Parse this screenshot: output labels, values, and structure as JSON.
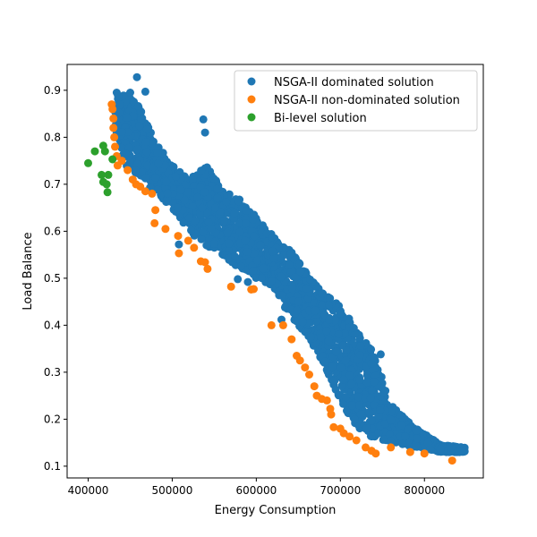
{
  "chart_data": {
    "type": "scatter",
    "title": "",
    "xlabel": "Energy Consumption",
    "ylabel": "Load Balance",
    "xlim": [
      375000,
      870000
    ],
    "ylim": [
      0.075,
      0.955
    ],
    "xticks": [
      400000,
      500000,
      600000,
      700000,
      800000
    ],
    "yticks": [
      0.1,
      0.2,
      0.3,
      0.4,
      0.5,
      0.6,
      0.7,
      0.8,
      0.9
    ],
    "grid": false,
    "legend": "top-right",
    "series": [
      {
        "name": "NSGA-II dominated solution",
        "color": "#1f77b4",
        "band": [
          [
            432000,
            0.82,
            0.895
          ],
          [
            445000,
            0.74,
            0.89
          ],
          [
            460000,
            0.72,
            0.87
          ],
          [
            480000,
            0.68,
            0.79
          ],
          [
            500000,
            0.65,
            0.74
          ],
          [
            520000,
            0.6,
            0.71
          ],
          [
            540000,
            0.57,
            0.74
          ],
          [
            560000,
            0.55,
            0.69
          ],
          [
            580000,
            0.52,
            0.67
          ],
          [
            600000,
            0.5,
            0.63
          ],
          [
            620000,
            0.48,
            0.59
          ],
          [
            640000,
            0.42,
            0.56
          ],
          [
            660000,
            0.38,
            0.51
          ],
          [
            680000,
            0.32,
            0.47
          ],
          [
            700000,
            0.24,
            0.44
          ],
          [
            720000,
            0.18,
            0.39
          ],
          [
            740000,
            0.16,
            0.34
          ],
          [
            760000,
            0.15,
            0.23
          ],
          [
            790000,
            0.14,
            0.18
          ],
          [
            820000,
            0.13,
            0.145
          ],
          [
            848000,
            0.13,
            0.14
          ]
        ],
        "points": [
          [
            458000,
            0.928
          ],
          [
            468000,
            0.897
          ],
          [
            537000,
            0.838
          ],
          [
            539000,
            0.81
          ],
          [
            450000,
            0.895
          ],
          [
            434000,
            0.895
          ],
          [
            578000,
            0.498
          ],
          [
            508000,
            0.572
          ],
          [
            630000,
            0.412
          ],
          [
            748000,
            0.338
          ],
          [
            660000,
            0.478
          ],
          [
            590000,
            0.492
          ],
          [
            716000,
            0.394
          ],
          [
            845000,
            0.133
          ],
          [
            832000,
            0.14
          ]
        ]
      },
      {
        "name": "NSGA-II non-dominated solution",
        "color": "#ff7f0e",
        "points": [
          [
            428000,
            0.87
          ],
          [
            429000,
            0.86
          ],
          [
            430000,
            0.84
          ],
          [
            430000,
            0.82
          ],
          [
            431000,
            0.8
          ],
          [
            432000,
            0.78
          ],
          [
            434000,
            0.76
          ],
          [
            435000,
            0.74
          ],
          [
            440000,
            0.75
          ],
          [
            447000,
            0.73
          ],
          [
            453000,
            0.71
          ],
          [
            457000,
            0.7
          ],
          [
            462000,
            0.695
          ],
          [
            468000,
            0.685
          ],
          [
            476000,
            0.68
          ],
          [
            480000,
            0.645
          ],
          [
            479000,
            0.617
          ],
          [
            492000,
            0.605
          ],
          [
            507000,
            0.59
          ],
          [
            519000,
            0.58
          ],
          [
            508000,
            0.553
          ],
          [
            526000,
            0.565
          ],
          [
            534000,
            0.536
          ],
          [
            539000,
            0.534
          ],
          [
            542000,
            0.52
          ],
          [
            570000,
            0.482
          ],
          [
            594000,
            0.476
          ],
          [
            597000,
            0.477
          ],
          [
            618000,
            0.4
          ],
          [
            632000,
            0.4
          ],
          [
            642000,
            0.37
          ],
          [
            648000,
            0.335
          ],
          [
            652000,
            0.325
          ],
          [
            658000,
            0.31
          ],
          [
            663000,
            0.295
          ],
          [
            669000,
            0.27
          ],
          [
            672000,
            0.25
          ],
          [
            678000,
            0.243
          ],
          [
            684000,
            0.24
          ],
          [
            688000,
            0.222
          ],
          [
            689000,
            0.21
          ],
          [
            692000,
            0.183
          ],
          [
            700000,
            0.18
          ],
          [
            704000,
            0.17
          ],
          [
            711000,
            0.163
          ],
          [
            719000,
            0.155
          ],
          [
            730000,
            0.14
          ],
          [
            737000,
            0.133
          ],
          [
            742000,
            0.127
          ],
          [
            760000,
            0.14
          ],
          [
            783000,
            0.13
          ],
          [
            800000,
            0.127
          ],
          [
            833000,
            0.112
          ]
        ]
      },
      {
        "name": "Bi-level solution",
        "color": "#2ca02c",
        "points": [
          [
            400000,
            0.745
          ],
          [
            408000,
            0.77
          ],
          [
            418000,
            0.782
          ],
          [
            420000,
            0.77
          ],
          [
            416000,
            0.72
          ],
          [
            418000,
            0.705
          ],
          [
            422000,
            0.7
          ],
          [
            424000,
            0.72
          ],
          [
            423000,
            0.683
          ],
          [
            429000,
            0.753
          ]
        ]
      }
    ]
  }
}
